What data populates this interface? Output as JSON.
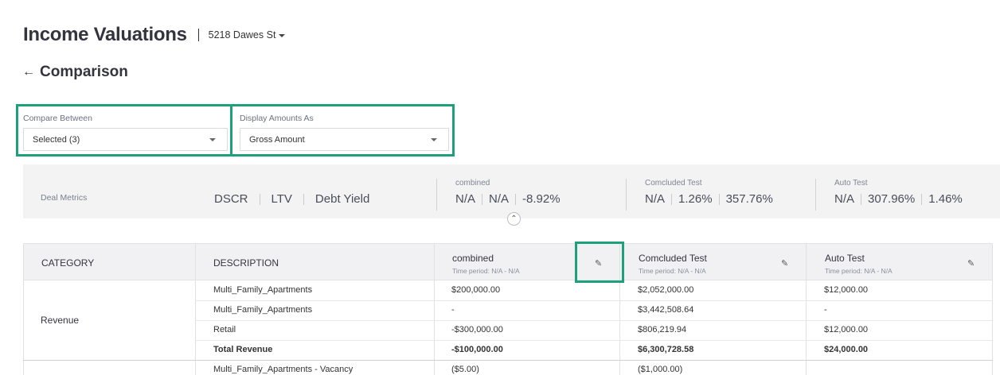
{
  "header": {
    "title": "Income Valuations",
    "property": "5218 Dawes St"
  },
  "page": {
    "back_icon": "arrow-left-icon",
    "title": "Comparison"
  },
  "filters": {
    "compare_between": {
      "label": "Compare Between",
      "value": "Selected (3)"
    },
    "display_amounts": {
      "label": "Display Amounts As",
      "value": "Gross Amount"
    }
  },
  "metrics": {
    "label": "Deal Metrics",
    "names": [
      "DSCR",
      "LTV",
      "Debt Yield"
    ],
    "columns": [
      {
        "name": "combined",
        "values": [
          "N/A",
          "N/A",
          "-8.92%"
        ]
      },
      {
        "name": "Comcluded Test",
        "values": [
          "N/A",
          "1.26%",
          "357.76%"
        ]
      },
      {
        "name": "Auto Test",
        "values": [
          "N/A",
          "307.96%",
          "1.46%"
        ]
      }
    ]
  },
  "table": {
    "headers": {
      "category": "CATEGORY",
      "description": "DESCRIPTION"
    },
    "scenarios": [
      {
        "name": "combined",
        "period": "Time period: N/A - N/A"
      },
      {
        "name": "Comcluded Test",
        "period": "Time period: N/A - N/A"
      },
      {
        "name": "Auto Test",
        "period": "Time period: N/A - N/A"
      }
    ],
    "category": "Revenue",
    "rows": [
      {
        "description": "Multi_Family_Apartments",
        "values": [
          "$200,000.00",
          "$2,052,000.00",
          "$12,000.00"
        ]
      },
      {
        "description": "Multi_Family_Apartments",
        "values": [
          "-",
          "$3,442,508.64",
          "-"
        ]
      },
      {
        "description": "Retail",
        "values": [
          "-$300,000.00",
          "$806,219.94",
          "$12,000.00"
        ]
      },
      {
        "description": "Total Revenue",
        "values": [
          "-$100,000.00",
          "$6,300,728.58",
          "$24,000.00"
        ],
        "bold": true
      },
      {
        "description": "Multi_Family_Apartments - Vacancy",
        "values": [
          "($5.00)",
          "($1,000.00)",
          ""
        ]
      }
    ]
  },
  "colors": {
    "highlight": "#1fa07c",
    "metrics_bg": "#f3f3f4",
    "header_bg": "#f1f1f3"
  }
}
